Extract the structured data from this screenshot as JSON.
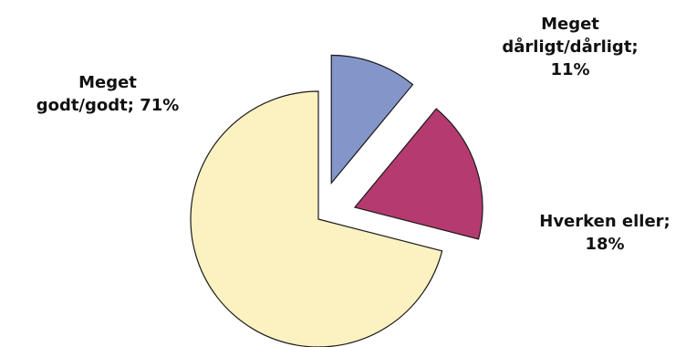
{
  "chart_data": {
    "type": "pie",
    "title": "",
    "exploded": true,
    "legend": "none",
    "slices": [
      {
        "name": "Meget dårligt/dårligt",
        "value": 11,
        "color": "#8496c9",
        "label_lines": [
          "Meget",
          "dårligt/dårligt;",
          "11%"
        ]
      },
      {
        "name": "Hverken eller",
        "value": 18,
        "color": "#b53a70",
        "label_lines": [
          "Hverken eller;",
          "18%"
        ]
      },
      {
        "name": "Meget godt/godt",
        "value": 71,
        "color": "#fcf1c1",
        "label_lines": [
          "Meget",
          "godt/godt; 71%"
        ]
      }
    ]
  }
}
